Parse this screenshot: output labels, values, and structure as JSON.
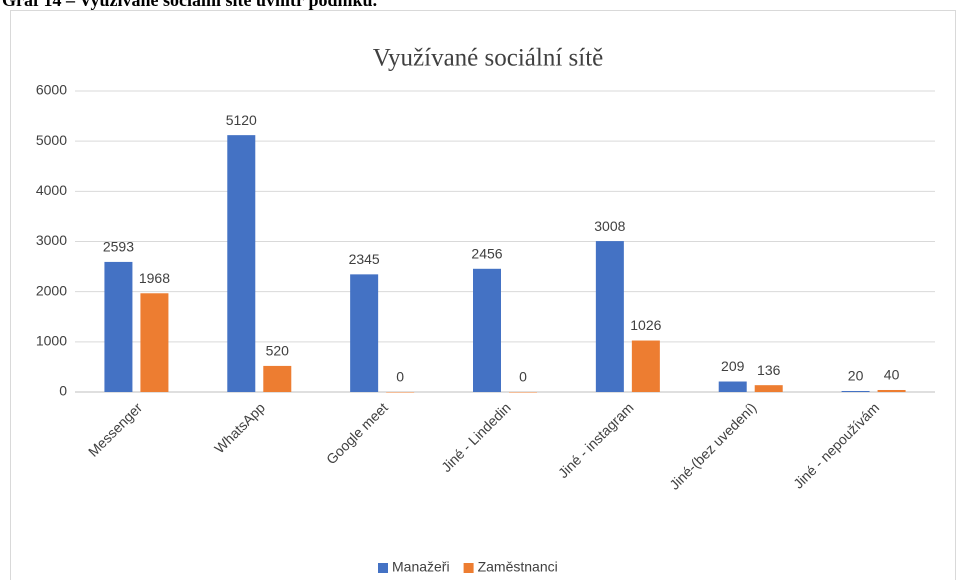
{
  "heading": "Graf 14 – Využívané sociální sítě uvnitř podniku.",
  "chart_data": {
    "type": "bar",
    "title": "Využívané sociální sítě",
    "categories": [
      "Messenger",
      "WhatsApp",
      "Google meet",
      "Jiné - Lindedin",
      "Jiné - instagram",
      "Jiné-(bez uvedení)",
      "Jiné - nepoužívám"
    ],
    "series": [
      {
        "name": "Manažeři",
        "color": "#4472c4",
        "values": [
          2593,
          5120,
          2345,
          2456,
          3008,
          209,
          20
        ]
      },
      {
        "name": "Zaměstnanci",
        "color": "#ed7d31",
        "values": [
          1968,
          520,
          0,
          0,
          1026,
          136,
          40
        ]
      }
    ],
    "ylim": [
      0,
      6000
    ],
    "yticks": [
      0,
      1000,
      2000,
      3000,
      4000,
      5000,
      6000
    ],
    "grid": true,
    "legend": "bottom"
  }
}
